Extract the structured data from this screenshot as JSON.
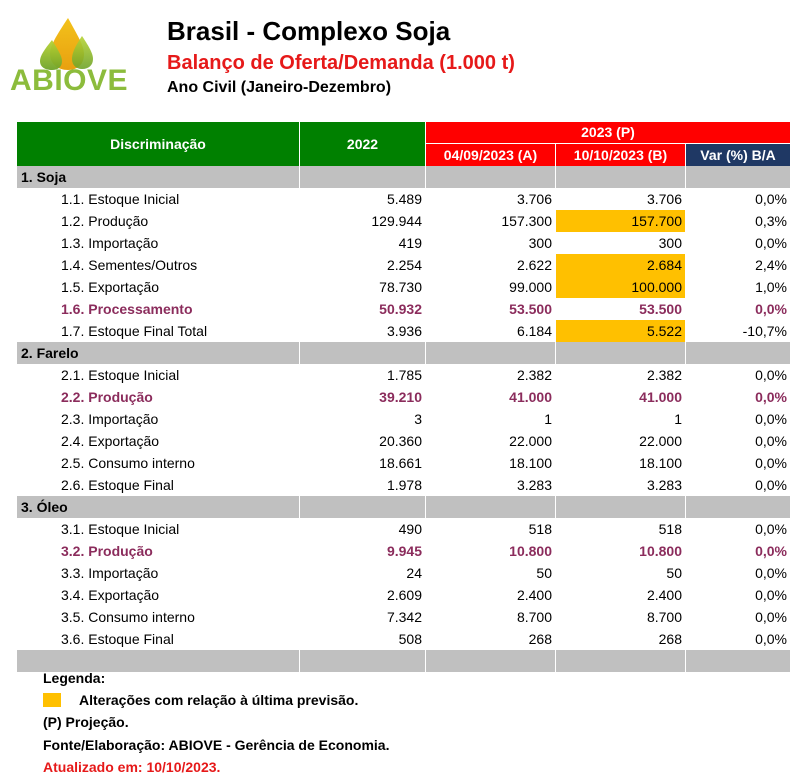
{
  "header": {
    "logo_text": "ABIOVE",
    "title": "Brasil - Complexo Soja",
    "subtitle": "Balanço de Oferta/Demanda (1.000 t)",
    "period": "Ano Civil (Janeiro-Dezembro)"
  },
  "colors": {
    "green_header": "#008000",
    "red_header": "#ff0000",
    "navy_header": "#1f3864",
    "highlight": "#ffc000",
    "emphasis_text": "#8b2c5c",
    "section_gray": "#c0c0c0"
  },
  "table": {
    "headers": {
      "discriminacao": "Discriminação",
      "y2022": "2022",
      "y2023": "2023 (P)",
      "col_a": "04/09/2023 (A)",
      "col_b": "10/10/2023 (B)",
      "var": "Var (%) B/A"
    },
    "sections": [
      {
        "title": "1. Soja",
        "rows": [
          {
            "label": "1.1. Estoque Inicial",
            "v2022": "5.489",
            "a": "3.706",
            "b": "3.706",
            "var": "0,0%"
          },
          {
            "label": "1.2. Produção",
            "v2022": "129.944",
            "a": "157.300",
            "b": "157.700",
            "var": "0,3%"
          },
          {
            "label": "1.3. Importação",
            "v2022": "419",
            "a": "300",
            "b": "300",
            "var": "0,0%"
          },
          {
            "label": "1.4. Sementes/Outros",
            "v2022": "2.254",
            "a": "2.622",
            "b": "2.684",
            "var": "2,4%"
          },
          {
            "label": "1.5. Exportação",
            "v2022": "78.730",
            "a": "99.000",
            "b": "100.000",
            "var": "1,0%"
          },
          {
            "label": "1.6. Processamento",
            "v2022": "50.932",
            "a": "53.500",
            "b": "53.500",
            "var": "0,0%"
          },
          {
            "label": "1.7. Estoque Final Total",
            "v2022": "3.936",
            "a": "6.184",
            "b": "5.522",
            "var": "-10,7%"
          }
        ]
      },
      {
        "title": "2. Farelo",
        "rows": [
          {
            "label": "2.1. Estoque Inicial",
            "v2022": "1.785",
            "a": "2.382",
            "b": "2.382",
            "var": "0,0%"
          },
          {
            "label": "2.2. Produção",
            "v2022": "39.210",
            "a": "41.000",
            "b": "41.000",
            "var": "0,0%"
          },
          {
            "label": "2.3. Importação",
            "v2022": "3",
            "a": "1",
            "b": "1",
            "var": "0,0%"
          },
          {
            "label": "2.4. Exportação",
            "v2022": "20.360",
            "a": "22.000",
            "b": "22.000",
            "var": "0,0%"
          },
          {
            "label": "2.5. Consumo interno",
            "v2022": "18.661",
            "a": "18.100",
            "b": "18.100",
            "var": "0,0%"
          },
          {
            "label": "2.6. Estoque Final",
            "v2022": "1.978",
            "a": "3.283",
            "b": "3.283",
            "var": "0,0%"
          }
        ]
      },
      {
        "title": "3. Óleo",
        "rows": [
          {
            "label": "3.1. Estoque Inicial",
            "v2022": "490",
            "a": "518",
            "b": "518",
            "var": "0,0%"
          },
          {
            "label": "3.2. Produção",
            "v2022": "9.945",
            "a": "10.800",
            "b": "10.800",
            "var": "0,0%"
          },
          {
            "label": "3.3. Importação",
            "v2022": "24",
            "a": "50",
            "b": "50",
            "var": "0,0%"
          },
          {
            "label": "3.4. Exportação",
            "v2022": "2.609",
            "a": "2.400",
            "b": "2.400",
            "var": "0,0%"
          },
          {
            "label": "3.5. Consumo interno",
            "v2022": "7.342",
            "a": "8.700",
            "b": "8.700",
            "var": "0,0%"
          },
          {
            "label": "3.6. Estoque Final",
            "v2022": "508",
            "a": "268",
            "b": "268",
            "var": "0,0%"
          }
        ]
      }
    ]
  },
  "legend": {
    "title": "Legenda:",
    "highlight_text": "Alterações com relação à última previsão.",
    "projection": "(P) Projeção.",
    "source": "Fonte/Elaboração: ABIOVE - Gerência de Economia.",
    "updated": "Atualizado em: 10/10/2023."
  }
}
